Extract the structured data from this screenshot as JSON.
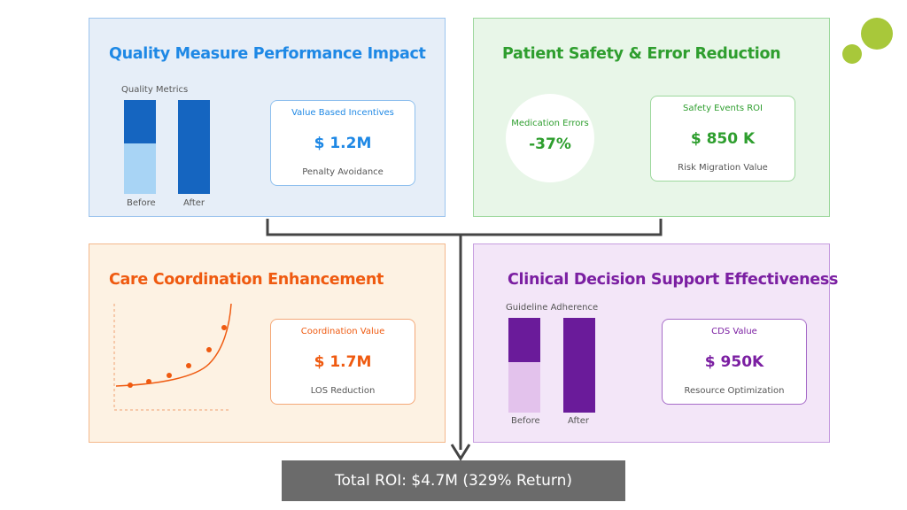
{
  "quality": {
    "title": "Quality Measure Performance Impact",
    "chart_label": "Quality Metrics",
    "before_label": "Before",
    "after_label": "After",
    "before_fill_pct": 46,
    "after_fill_pct": 100,
    "box_label": "Value Based Incentives",
    "box_value": "$ 1.2M",
    "box_sub": "Penalty Avoidance",
    "color": "#1e88e5"
  },
  "safety": {
    "title": "Patient Safety & Error Reduction",
    "circle_label": "Medication Errors",
    "circle_value": "-37%",
    "box_label": "Safety Events ROI",
    "box_value": "$ 850 K",
    "box_sub": "Risk Migration Value",
    "color": "#2e9e2e"
  },
  "care": {
    "title": "Care Coordination Enhancement",
    "box_label": "Coordination Value",
    "box_value": "$ 1.7M",
    "box_sub": "LOS Reduction",
    "color": "#ef5a10"
  },
  "cds": {
    "title": "Clinical Decision Support Effectiveness",
    "chart_label": "Guideline Adherence",
    "before_label": "Before",
    "after_label": "After",
    "before_fill_pct": 47,
    "after_fill_pct": 100,
    "box_label": "CDS Value",
    "box_value": "$ 950K",
    "box_sub": "Resource Optimization",
    "color": "#7b1fa2"
  },
  "total": {
    "label": "Total ROI: $4.7M (329% Return)"
  }
}
